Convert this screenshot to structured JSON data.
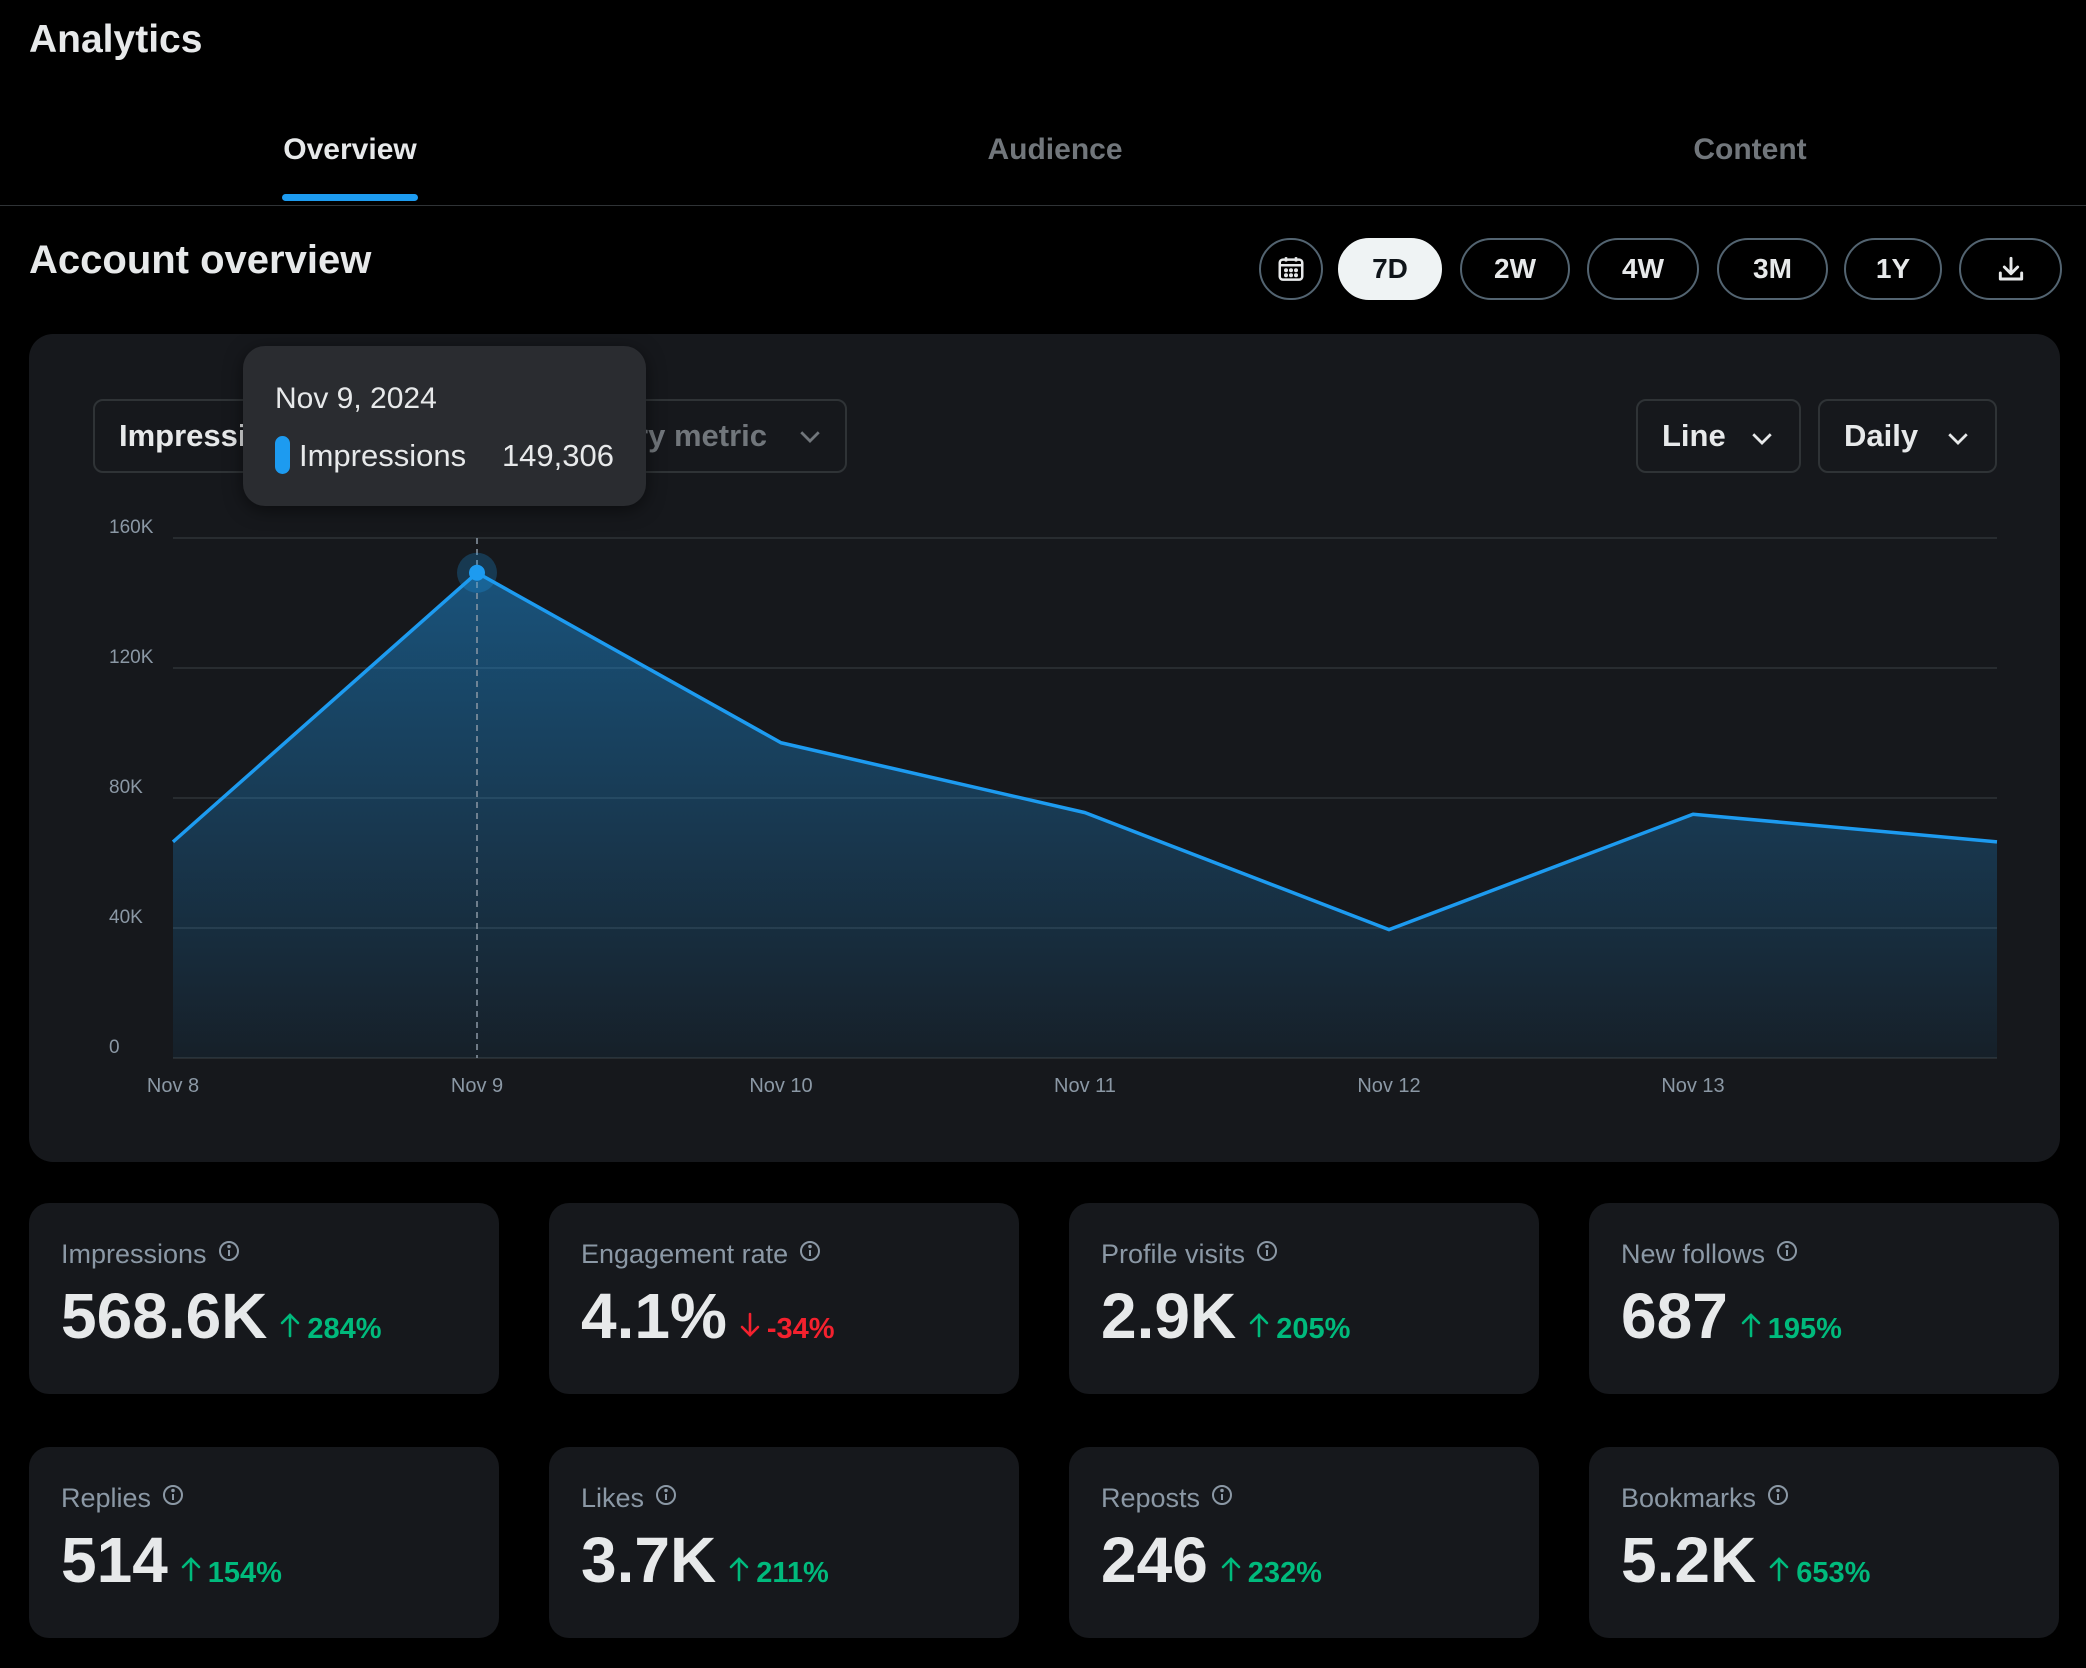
{
  "header": {
    "title": "Analytics"
  },
  "tabs": [
    {
      "label": "Overview",
      "active": true
    },
    {
      "label": "Audience",
      "active": false
    },
    {
      "label": "Content",
      "active": false
    }
  ],
  "section": {
    "title": "Account overview"
  },
  "range_buttons": [
    "7D",
    "2W",
    "4W",
    "3M",
    "1Y"
  ],
  "range_selected": "7D",
  "icons": {
    "calendar": "calendar-icon",
    "download": "download-icon",
    "info": "info-icon",
    "chevron": "chevron-down-icon"
  },
  "selectors": {
    "primary_metric": "Impressions",
    "secondary_metric": "Secondary metric",
    "chart_type": "Line",
    "interval": "Daily"
  },
  "tooltip": {
    "date": "Nov 9, 2024",
    "label": "Impressions",
    "value": "149,306"
  },
  "colors": {
    "accent": "#1d9bf0",
    "positive": "#00ba7c",
    "negative": "#f4212e"
  },
  "chart_data": {
    "type": "area",
    "x": [
      "Nov 8",
      "Nov 9",
      "Nov 10",
      "Nov 11",
      "Nov 12",
      "Nov 13",
      ""
    ],
    "tick_labels": [
      "Nov 8",
      "Nov 9",
      "Nov 10",
      "Nov 11",
      "Nov 12",
      "Nov 13"
    ],
    "series": [
      {
        "name": "Impressions",
        "values": [
          66500,
          149306,
          97000,
          75500,
          39500,
          75000,
          66500
        ]
      }
    ],
    "ylim": [
      0,
      160000
    ],
    "yticks": [
      0,
      40000,
      80000,
      120000,
      160000
    ],
    "ytick_labels": [
      "0",
      "40K",
      "80K",
      "120K",
      "160K"
    ],
    "highlight_index": 1,
    "grid": true
  },
  "metrics": [
    {
      "label": "Impressions",
      "value": "568.6K",
      "change": "284%",
      "direction": "up"
    },
    {
      "label": "Engagement rate",
      "value": "4.1%",
      "change": "-34%",
      "direction": "down"
    },
    {
      "label": "Profile visits",
      "value": "2.9K",
      "change": "205%",
      "direction": "up"
    },
    {
      "label": "New follows",
      "value": "687",
      "change": "195%",
      "direction": "up"
    },
    {
      "label": "Replies",
      "value": "514",
      "change": "154%",
      "direction": "up"
    },
    {
      "label": "Likes",
      "value": "3.7K",
      "change": "211%",
      "direction": "up"
    },
    {
      "label": "Reposts",
      "value": "246",
      "change": "232%",
      "direction": "up"
    },
    {
      "label": "Bookmarks",
      "value": "5.2K",
      "change": "653%",
      "direction": "up"
    }
  ]
}
